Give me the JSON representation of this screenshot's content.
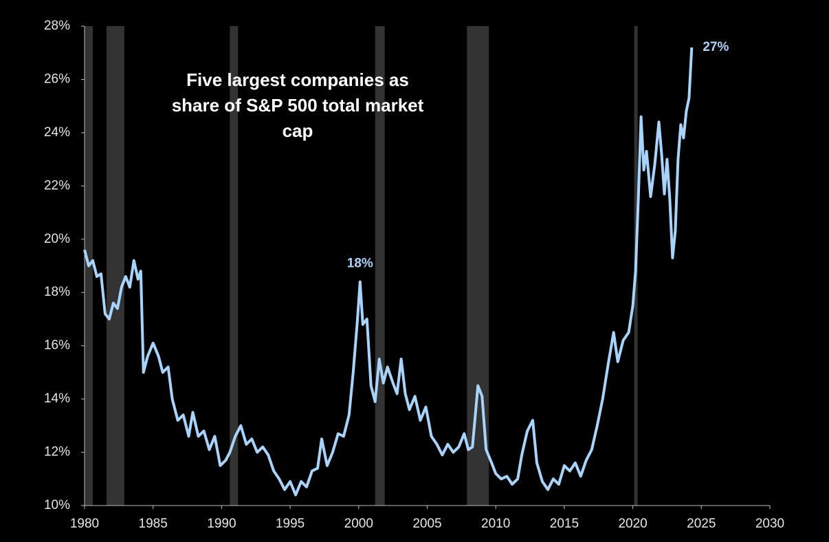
{
  "chart_data": {
    "type": "line",
    "title": "Five largest companies as share of S&P 500 total market cap",
    "x": [
      1980.0,
      1980.3,
      1980.6,
      1980.9,
      1981.2,
      1981.5,
      1981.8,
      1982.1,
      1982.4,
      1982.7,
      1983.0,
      1983.3,
      1983.6,
      1983.9,
      1984.1,
      1984.3,
      1984.6,
      1985.0,
      1985.4,
      1985.7,
      1986.1,
      1986.4,
      1986.8,
      1987.2,
      1987.6,
      1987.9,
      1988.3,
      1988.7,
      1989.1,
      1989.5,
      1989.9,
      1990.3,
      1990.6,
      1991.0,
      1991.4,
      1991.8,
      1992.2,
      1992.6,
      1993.0,
      1993.4,
      1993.8,
      1994.2,
      1994.6,
      1995.0,
      1995.4,
      1995.8,
      1996.2,
      1996.6,
      1997.0,
      1997.3,
      1997.7,
      1998.1,
      1998.5,
      1998.9,
      1999.3,
      1999.6,
      1999.9,
      2000.1,
      2000.3,
      2000.6,
      2000.9,
      2001.2,
      2001.5,
      2001.8,
      2002.1,
      2002.5,
      2002.8,
      2003.1,
      2003.4,
      2003.7,
      2004.1,
      2004.5,
      2004.9,
      2005.3,
      2005.7,
      2006.1,
      2006.5,
      2006.9,
      2007.3,
      2007.7,
      2008.0,
      2008.3,
      2008.7,
      2009.0,
      2009.3,
      2009.7,
      2010.0,
      2010.4,
      2010.8,
      2011.2,
      2011.6,
      2011.9,
      2012.3,
      2012.7,
      2013.0,
      2013.4,
      2013.8,
      2014.2,
      2014.6,
      2015.0,
      2015.4,
      2015.8,
      2016.2,
      2016.6,
      2017.0,
      2017.4,
      2017.8,
      2018.2,
      2018.6,
      2018.9,
      2019.3,
      2019.7,
      2020.0,
      2020.2,
      2020.4,
      2020.6,
      2020.8,
      2021.0,
      2021.3,
      2021.6,
      2021.9,
      2022.1,
      2022.3,
      2022.5,
      2022.7,
      2022.9,
      2023.1,
      2023.3,
      2023.5,
      2023.7,
      2023.9,
      2024.1,
      2024.3
    ],
    "series": [
      {
        "color": "#a8d4fb",
        "values": [
          19.6,
          19.0,
          19.2,
          18.6,
          18.7,
          17.2,
          17.0,
          17.6,
          17.4,
          18.2,
          18.6,
          18.2,
          19.2,
          18.5,
          18.8,
          15.0,
          15.6,
          16.1,
          15.6,
          15.0,
          15.2,
          14.0,
          13.2,
          13.4,
          12.6,
          13.5,
          12.6,
          12.8,
          12.1,
          12.6,
          11.5,
          11.7,
          12.0,
          12.6,
          13.0,
          12.3,
          12.5,
          12.0,
          12.2,
          11.9,
          11.3,
          11.0,
          10.6,
          10.9,
          10.4,
          10.9,
          10.7,
          11.3,
          11.4,
          12.5,
          11.5,
          12.0,
          12.7,
          12.6,
          13.4,
          15.0,
          16.9,
          18.4,
          16.8,
          17.0,
          14.5,
          13.9,
          15.5,
          14.6,
          15.2,
          14.6,
          14.2,
          15.5,
          14.2,
          13.6,
          14.1,
          13.2,
          13.7,
          12.6,
          12.3,
          11.9,
          12.3,
          12.0,
          12.2,
          12.7,
          12.1,
          12.2,
          14.5,
          14.1,
          12.1,
          11.6,
          11.2,
          11.0,
          11.1,
          10.8,
          11.0,
          11.9,
          12.8,
          13.2,
          11.6,
          10.9,
          10.6,
          11.0,
          10.8,
          11.5,
          11.3,
          11.6,
          11.1,
          11.7,
          12.1,
          13.0,
          14.0,
          15.3,
          16.5,
          15.4,
          16.2,
          16.5,
          17.5,
          18.8,
          21.5,
          24.6,
          22.6,
          23.3,
          21.6,
          22.8,
          24.4,
          23.2,
          21.7,
          23.0,
          21.5,
          19.3,
          20.3,
          23.0,
          24.3,
          23.8,
          24.8,
          25.3,
          27.2
        ]
      }
    ],
    "shaded_periods": [
      [
        1980.0,
        1980.6
      ],
      [
        1981.6,
        1982.9
      ],
      [
        1990.6,
        1991.2
      ],
      [
        2001.2,
        2001.9
      ],
      [
        2007.9,
        2009.5
      ],
      [
        2020.1,
        2020.35
      ]
    ],
    "shade_color": "#333333",
    "annotations": [
      {
        "text": "18%",
        "x": 2000.1,
        "y": 18.4,
        "position": "above"
      },
      {
        "text": "27%",
        "x": 2024.3,
        "y": 27.2,
        "position": "right"
      }
    ],
    "xlim": [
      1980,
      2030
    ],
    "xticks": [
      1980,
      1985,
      1990,
      1995,
      2000,
      2005,
      2010,
      2015,
      2020,
      2025,
      2030
    ],
    "ylim": [
      10,
      28
    ],
    "yticks": [
      {
        "value": 10,
        "label": "10%"
      },
      {
        "value": 12,
        "label": "12%"
      },
      {
        "value": 14,
        "label": "14%"
      },
      {
        "value": 16,
        "label": "16%"
      },
      {
        "value": 18,
        "label": "18%"
      },
      {
        "value": 20,
        "label": "20%"
      },
      {
        "value": 22,
        "label": "22%"
      },
      {
        "value": 24,
        "label": "24%"
      },
      {
        "value": 26,
        "label": "26%"
      },
      {
        "value": 28,
        "label": "28%"
      }
    ],
    "grid": false
  }
}
